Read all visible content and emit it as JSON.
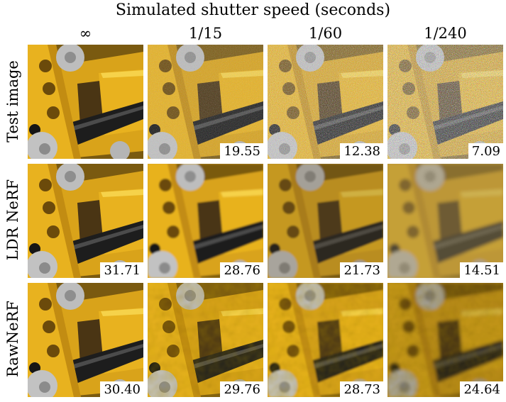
{
  "figure": {
    "title": "Simulated shutter speed (seconds)",
    "columns": [
      "∞",
      "1/15",
      "1/60",
      "1/240"
    ],
    "rows": [
      {
        "label": "Test image",
        "scores": [
          "",
          "19.55",
          "12.38",
          "7.09"
        ]
      },
      {
        "label": "LDR NeRF",
        "scores": [
          "31.71",
          "28.76",
          "21.73",
          "14.51"
        ]
      },
      {
        "label": "RawNeRF",
        "scores": [
          "30.40",
          "29.76",
          "28.73",
          "24.64"
        ]
      }
    ],
    "colors": {
      "lego_yellow": "#e8b21f",
      "lego_gray": "#b9b9b9",
      "lego_dark": "#1d1d1d"
    }
  }
}
